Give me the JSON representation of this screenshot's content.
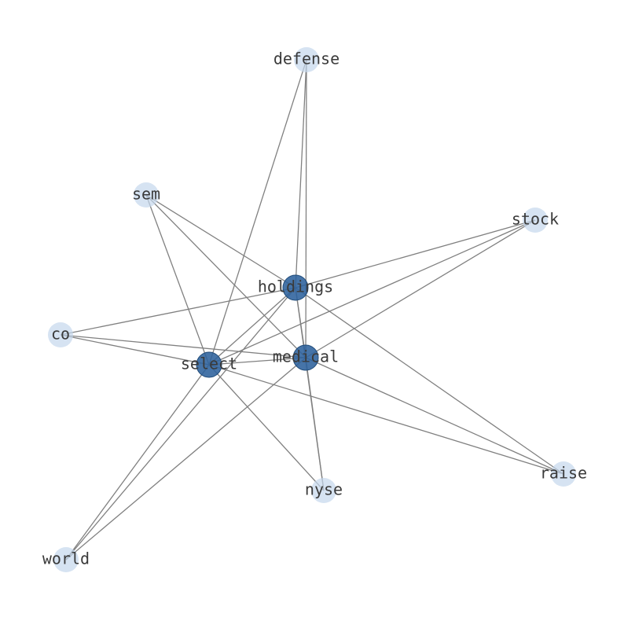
{
  "nodes": [
    {
      "label": "defense"
    },
    {
      "label": "sem"
    },
    {
      "label": "stock"
    },
    {
      "label": "holdings"
    },
    {
      "label": "co"
    },
    {
      "label": "select"
    },
    {
      "label": "medical"
    },
    {
      "label": "raise"
    },
    {
      "label": "nyse"
    },
    {
      "label": "world"
    }
  ]
}
